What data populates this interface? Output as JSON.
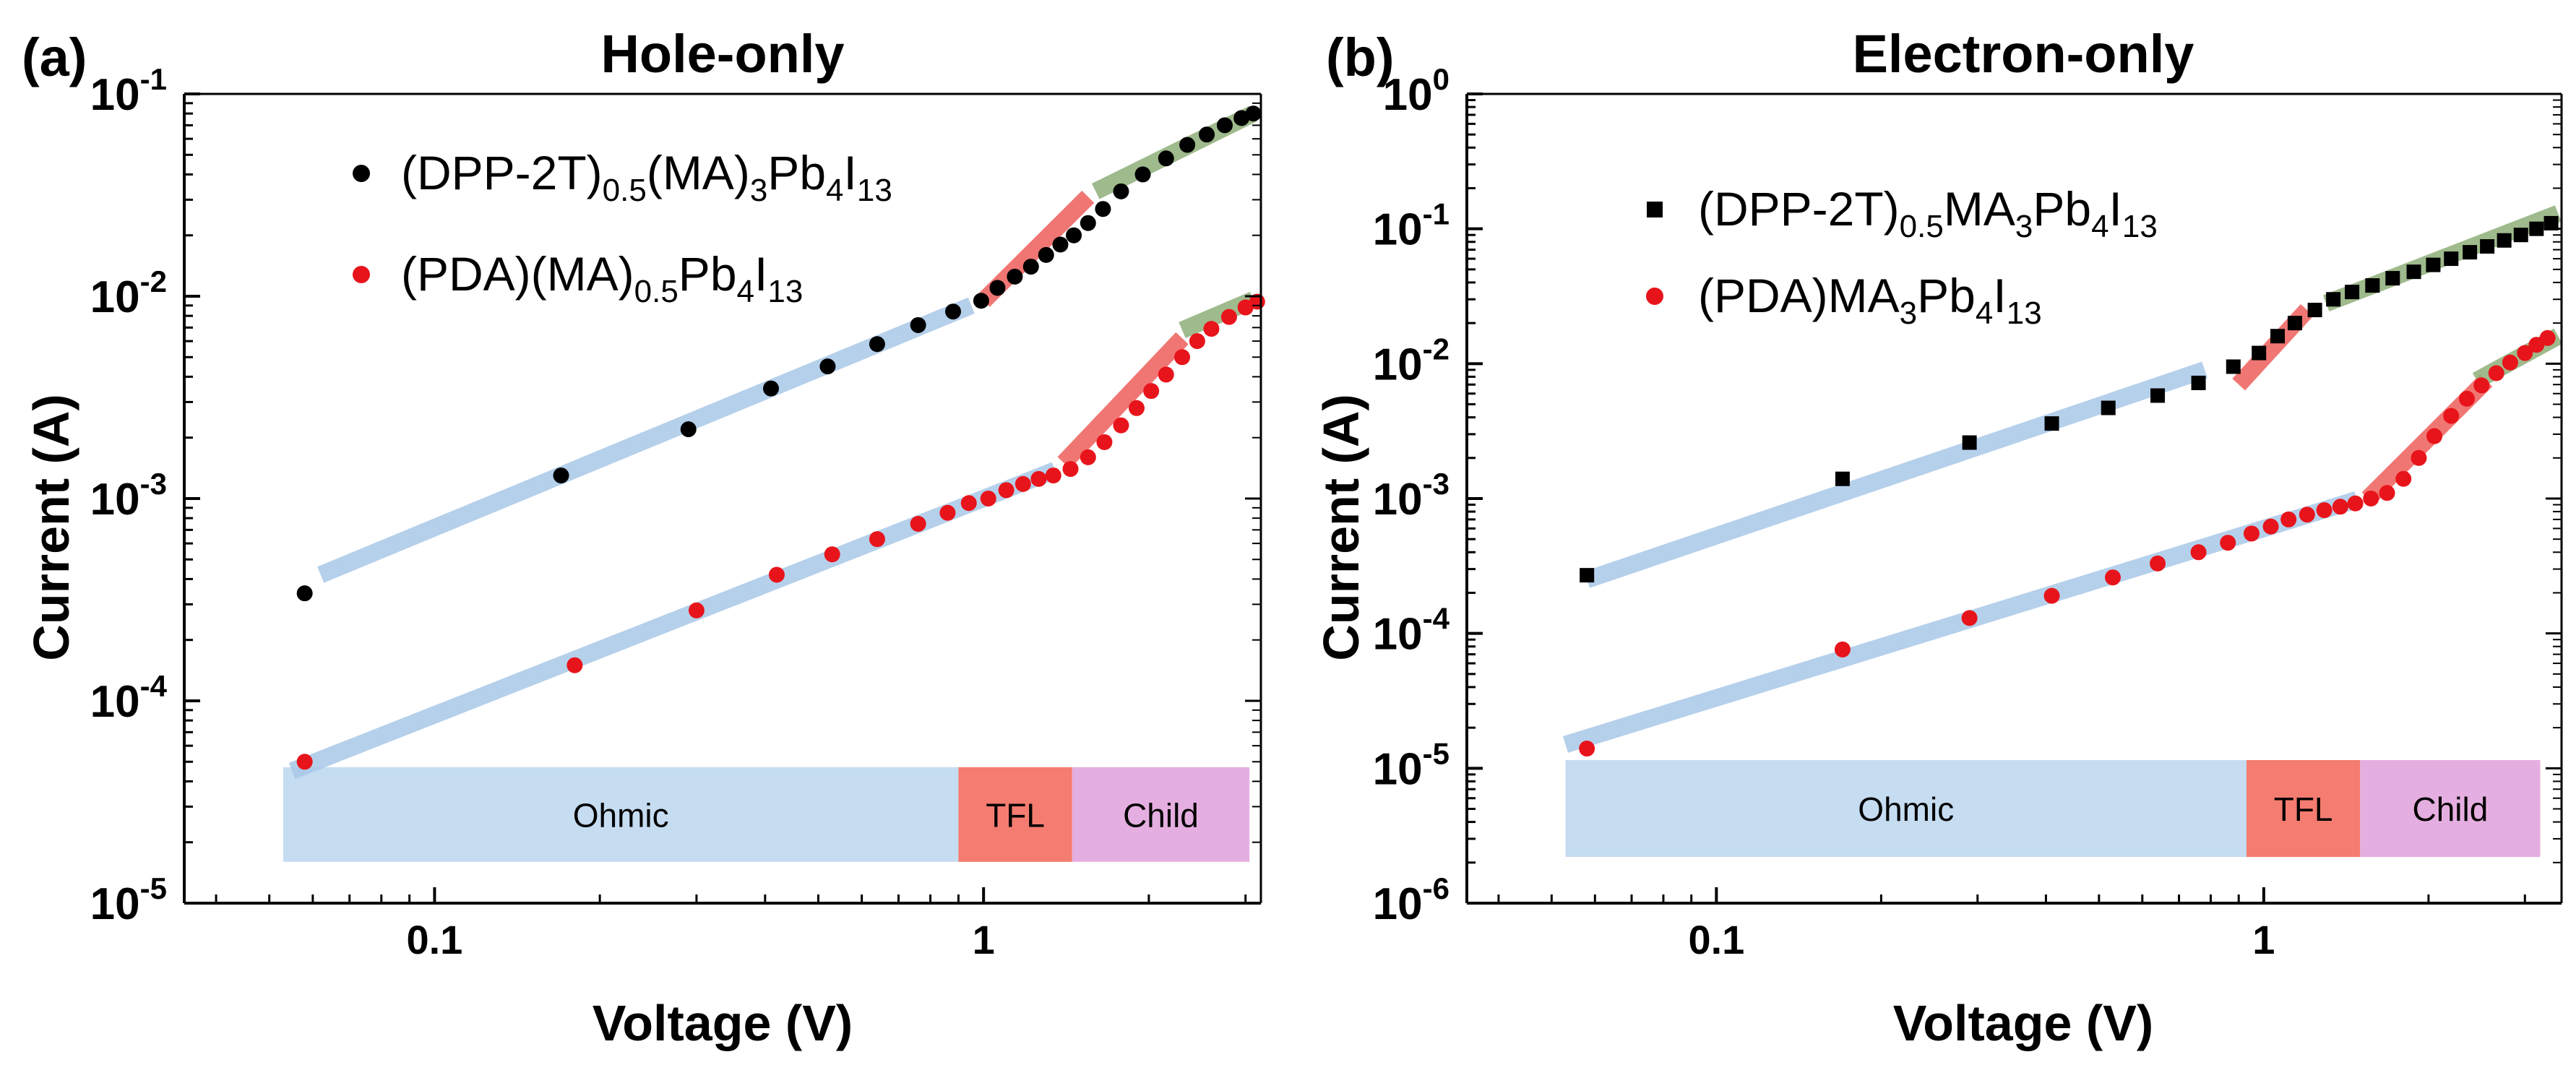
{
  "chart_data": [
    {
      "type": "scatter",
      "panel_label": "(a)",
      "title": "Hole-only",
      "xlabel": "Voltage (V)",
      "ylabel": "Current (A)",
      "xscale": "log",
      "yscale": "log",
      "xlim": [
        0.035,
        3.2
      ],
      "ylim": [
        1e-05,
        0.1
      ],
      "x_ticks": [
        {
          "value": 0.1,
          "label": "0.1"
        },
        {
          "value": 1,
          "label": "1"
        }
      ],
      "y_ticks": [
        {
          "value": 1e-05,
          "base": "10",
          "exp": "-5"
        },
        {
          "value": 0.0001,
          "base": "10",
          "exp": "-4"
        },
        {
          "value": 0.001,
          "base": "10",
          "exp": "-3"
        },
        {
          "value": 0.01,
          "base": "10",
          "exp": "-2"
        },
        {
          "value": 0.1,
          "base": "10",
          "exp": "-1"
        }
      ],
      "legend_position": "top-left",
      "series": [
        {
          "name": "(DPP-2T)0.5(MA)3Pb4I13",
          "legend_parts": [
            [
              "(DPP-2T)",
              ""
            ],
            [
              "0.5",
              "sub"
            ],
            [
              "(MA)",
              ""
            ],
            [
              "3",
              "sub"
            ],
            [
              "Pb",
              ""
            ],
            [
              "4",
              "sub"
            ],
            [
              "I",
              ""
            ],
            [
              "13",
              "sub"
            ]
          ],
          "color": "#000000",
          "marker": "circle",
          "x": [
            0.058,
            0.17,
            0.29,
            0.41,
            0.52,
            0.64,
            0.76,
            0.88,
            0.99,
            1.06,
            1.14,
            1.22,
            1.3,
            1.38,
            1.46,
            1.55,
            1.65,
            1.78,
            1.95,
            2.15,
            2.35,
            2.55,
            2.75,
            2.95,
            3.1
          ],
          "y": [
            0.00034,
            0.0013,
            0.0022,
            0.0035,
            0.0045,
            0.0058,
            0.0072,
            0.0084,
            0.0095,
            0.011,
            0.0125,
            0.014,
            0.016,
            0.018,
            0.02,
            0.023,
            0.027,
            0.033,
            0.04,
            0.048,
            0.056,
            0.063,
            0.07,
            0.076,
            0.08
          ]
        },
        {
          "name": "(PDA)(MA)0.5Pb4I13",
          "legend_parts": [
            [
              "(PDA)(MA)",
              ""
            ],
            [
              "0.5",
              "sub"
            ],
            [
              "Pb",
              ""
            ],
            [
              "4",
              "sub"
            ],
            [
              "I",
              ""
            ],
            [
              "13",
              "sub"
            ]
          ],
          "color": "#e8141b",
          "marker": "circle",
          "x": [
            0.058,
            0.18,
            0.3,
            0.42,
            0.53,
            0.64,
            0.76,
            0.86,
            0.94,
            1.02,
            1.1,
            1.18,
            1.26,
            1.34,
            1.44,
            1.55,
            1.66,
            1.78,
            1.9,
            2.02,
            2.15,
            2.3,
            2.45,
            2.6,
            2.8,
            3.0,
            3.15
          ],
          "y": [
            5e-05,
            0.00015,
            0.00028,
            0.00042,
            0.00053,
            0.00063,
            0.00075,
            0.00085,
            0.00095,
            0.001,
            0.0011,
            0.00118,
            0.00125,
            0.0013,
            0.0014,
            0.0016,
            0.0019,
            0.0023,
            0.0028,
            0.0034,
            0.0041,
            0.005,
            0.006,
            0.0069,
            0.0079,
            0.0088,
            0.0094
          ]
        }
      ],
      "fit_lines": [
        {
          "regime": "Ohmic",
          "color": "#a9c8e8",
          "x": [
            0.062,
            0.95
          ],
          "y": [
            0.00042,
            0.009
          ]
        },
        {
          "regime": "TFL",
          "color": "#ee5f5b",
          "x": [
            1.0,
            1.55
          ],
          "y": [
            0.0095,
            0.031
          ]
        },
        {
          "regime": "Child",
          "color": "#8fae78",
          "x": [
            1.6,
            3.1
          ],
          "y": [
            0.033,
            0.08
          ]
        },
        {
          "regime": "Ohmic",
          "color": "#a9c8e8",
          "x": [
            0.055,
            1.35
          ],
          "y": [
            4.5e-05,
            0.00138
          ]
        },
        {
          "regime": "TFL",
          "color": "#ee5f5b",
          "x": [
            1.4,
            2.3
          ],
          "y": [
            0.0015,
            0.0062
          ]
        },
        {
          "regime": "Child",
          "color": "#8fae78",
          "x": [
            2.3,
            3.1
          ],
          "y": [
            0.0068,
            0.0096
          ]
        }
      ],
      "regimes": [
        {
          "label": "Ohmic",
          "x0": 0.053,
          "x1": 0.9,
          "color": "#c5dcf1"
        },
        {
          "label": "TFL",
          "x0": 0.9,
          "x1": 1.45,
          "color": "#f47c70"
        },
        {
          "label": "Child",
          "x0": 1.45,
          "x1": 3.05,
          "color": "#e5aee0"
        }
      ],
      "regime_band_y": [
        1.6e-05,
        4.7e-05
      ]
    },
    {
      "type": "scatter",
      "panel_label": "(b)",
      "title": "Electron-only",
      "xlabel": "Voltage (V)",
      "ylabel": "Current (A)",
      "xscale": "log",
      "yscale": "log",
      "xlim": [
        0.035,
        3.5
      ],
      "ylim": [
        1e-06,
        1
      ],
      "x_ticks": [
        {
          "value": 0.1,
          "label": "0.1"
        },
        {
          "value": 1,
          "label": "1"
        }
      ],
      "y_ticks": [
        {
          "value": 1e-06,
          "base": "10",
          "exp": "-6"
        },
        {
          "value": 1e-05,
          "base": "10",
          "exp": "-5"
        },
        {
          "value": 0.0001,
          "base": "10",
          "exp": "-4"
        },
        {
          "value": 0.001,
          "base": "10",
          "exp": "-3"
        },
        {
          "value": 0.01,
          "base": "10",
          "exp": "-2"
        },
        {
          "value": 0.1,
          "base": "10",
          "exp": "-1"
        },
        {
          "value": 1,
          "base": "10",
          "exp": "0"
        }
      ],
      "legend_position": "top-left",
      "series": [
        {
          "name": "(DPP-2T)0.5MA3Pb4I13",
          "legend_parts": [
            [
              "(DPP-2T)",
              ""
            ],
            [
              "0.5",
              "sub"
            ],
            [
              "MA",
              ""
            ],
            [
              "3",
              "sub"
            ],
            [
              "Pb",
              ""
            ],
            [
              "4",
              "sub"
            ],
            [
              "I",
              ""
            ],
            [
              "13",
              "sub"
            ]
          ],
          "color": "#000000",
          "marker": "square",
          "x": [
            0.058,
            0.17,
            0.29,
            0.41,
            0.52,
            0.64,
            0.76,
            0.88,
            0.98,
            1.06,
            1.14,
            1.24,
            1.34,
            1.45,
            1.58,
            1.72,
            1.88,
            2.04,
            2.2,
            2.38,
            2.56,
            2.75,
            2.95,
            3.15,
            3.35
          ],
          "y": [
            0.00027,
            0.0014,
            0.0026,
            0.0036,
            0.0047,
            0.0058,
            0.0072,
            0.0095,
            0.012,
            0.016,
            0.02,
            0.025,
            0.03,
            0.034,
            0.038,
            0.043,
            0.048,
            0.054,
            0.06,
            0.067,
            0.074,
            0.082,
            0.09,
            0.1,
            0.11
          ]
        },
        {
          "name": "(PDA)MA3Pb4I13",
          "legend_parts": [
            [
              "(PDA)MA",
              ""
            ],
            [
              "3",
              "sub"
            ],
            [
              "Pb",
              ""
            ],
            [
              "4",
              "sub"
            ],
            [
              "I",
              ""
            ],
            [
              "13",
              "sub"
            ]
          ],
          "color": "#e8141b",
          "marker": "circle",
          "x": [
            0.058,
            0.17,
            0.29,
            0.41,
            0.53,
            0.64,
            0.76,
            0.86,
            0.95,
            1.03,
            1.11,
            1.2,
            1.29,
            1.38,
            1.47,
            1.57,
            1.68,
            1.8,
            1.92,
            2.05,
            2.2,
            2.35,
            2.5,
            2.66,
            2.82,
            3.0,
            3.15,
            3.3
          ],
          "y": [
            1.4e-05,
            7.6e-05,
            0.00013,
            0.00019,
            0.00026,
            0.00033,
            0.0004,
            0.00047,
            0.00055,
            0.00062,
            0.0007,
            0.00076,
            0.00082,
            0.00087,
            0.00092,
            0.001,
            0.0011,
            0.0014,
            0.002,
            0.0029,
            0.0041,
            0.0055,
            0.0069,
            0.0085,
            0.0102,
            0.012,
            0.0138,
            0.0155
          ]
        }
      ],
      "fit_lines": [
        {
          "regime": "Ohmic",
          "color": "#a9c8e8",
          "x": [
            0.058,
            0.78
          ],
          "y": [
            0.00025,
            0.009
          ]
        },
        {
          "regime": "TFL",
          "color": "#ee5f5b",
          "x": [
            0.9,
            1.2
          ],
          "y": [
            0.007,
            0.025
          ]
        },
        {
          "regime": "Child",
          "color": "#8fae78",
          "x": [
            1.3,
            3.45
          ],
          "y": [
            0.028,
            0.13
          ]
        },
        {
          "regime": "Ohmic",
          "color": "#a9c8e8",
          "x": [
            0.053,
            1.48
          ],
          "y": [
            1.5e-05,
            0.00098
          ]
        },
        {
          "regime": "TFL",
          "color": "#ee5f5b",
          "x": [
            1.55,
            2.55
          ],
          "y": [
            0.001,
            0.0075
          ]
        },
        {
          "regime": "Child",
          "color": "#8fae78",
          "x": [
            2.45,
            3.45
          ],
          "y": [
            0.0075,
            0.016
          ]
        }
      ],
      "regimes": [
        {
          "label": "Ohmic",
          "x0": 0.053,
          "x1": 0.93,
          "color": "#c5dcf1"
        },
        {
          "label": "TFL",
          "x0": 0.93,
          "x1": 1.5,
          "color": "#f47c70"
        },
        {
          "label": "Child",
          "x0": 1.5,
          "x1": 3.2,
          "color": "#e5aee0"
        }
      ],
      "regime_band_y": [
        2.2e-06,
        1.15e-05
      ]
    }
  ]
}
